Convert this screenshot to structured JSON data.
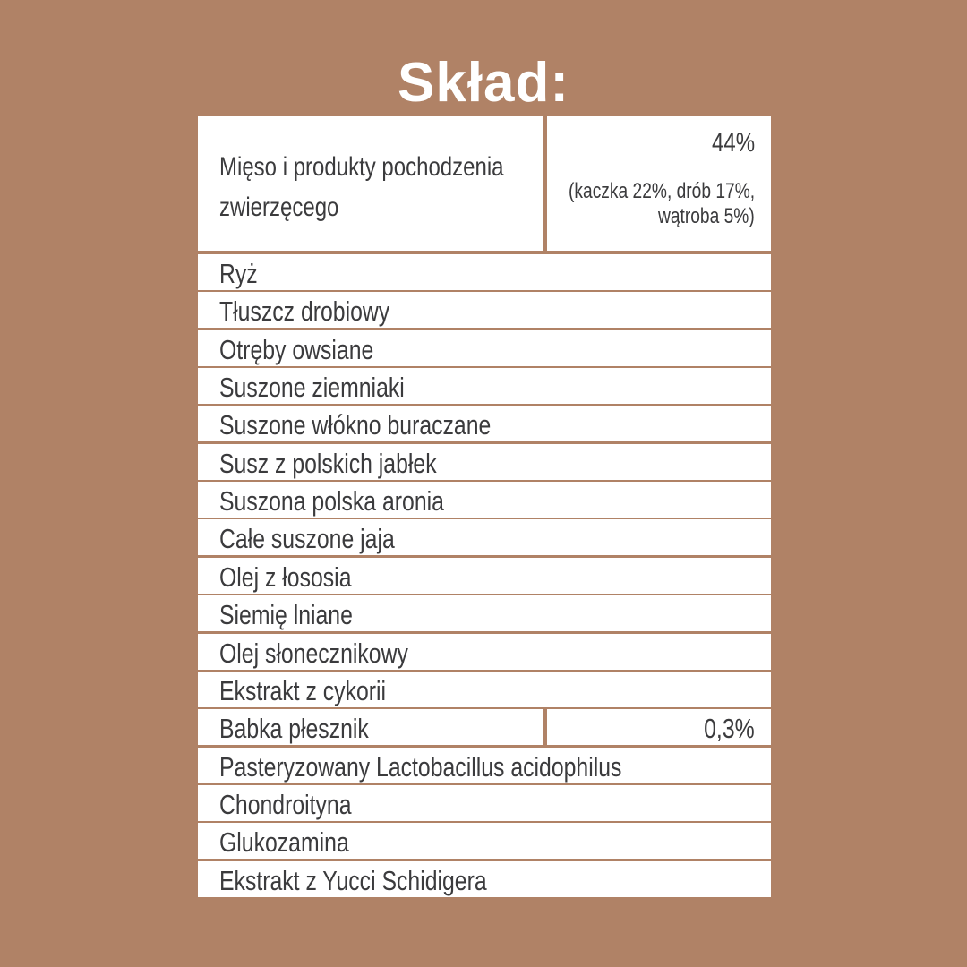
{
  "title": "Skład:",
  "header": {
    "label": "Mięso i produkty pochodzenia zwierzęcego",
    "percent": "44%",
    "breakdown_line1": "(kaczka 22%, drób 17%,",
    "breakdown_line2": "wątroba 5%)"
  },
  "ingredients": [
    {
      "name": "Ryż"
    },
    {
      "name": "Tłuszcz drobiowy"
    },
    {
      "name": "Otręby owsiane"
    },
    {
      "name": "Suszone ziemniaki"
    },
    {
      "name": "Suszone włókno buraczane"
    },
    {
      "name": "Susz z polskich jabłek"
    },
    {
      "name": "Suszona polska aronia"
    },
    {
      "name": "Całe suszone jaja"
    },
    {
      "name": "Olej z łososia"
    },
    {
      "name": "Siemię lniane"
    },
    {
      "name": "Olej słonecznikowy"
    },
    {
      "name": "Ekstrakt z cykorii"
    },
    {
      "name": "Babka płesznik",
      "value": "0,3%"
    },
    {
      "name": "Pasteryzowany Lactobacillus acidophilus"
    },
    {
      "name": "Chondroityna"
    },
    {
      "name": "Glukozamina"
    },
    {
      "name": "Ekstrakt z Yucci Schidigera"
    }
  ],
  "colors": {
    "background": "#b08266",
    "cell": "#ffffff",
    "text": "#3b3b3d",
    "title": "#ffffff"
  }
}
